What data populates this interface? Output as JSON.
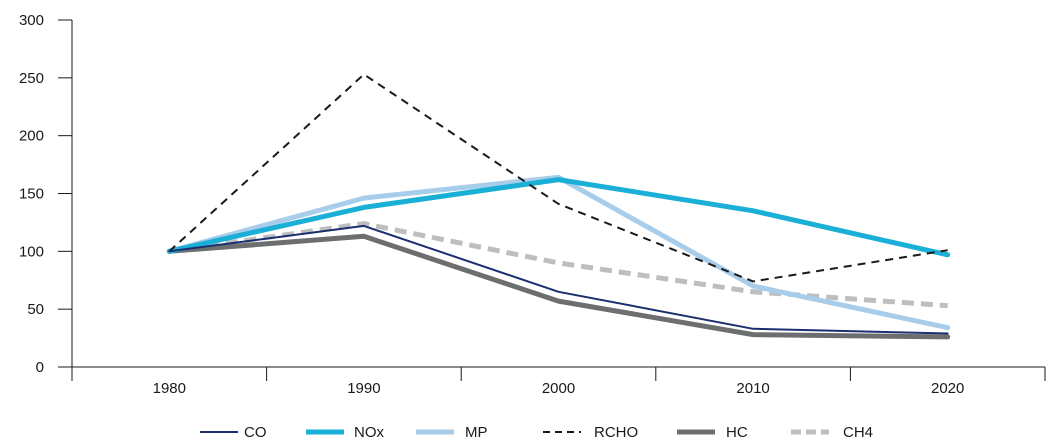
{
  "chart_data": {
    "type": "line",
    "title": "",
    "xlabel": "",
    "ylabel": "",
    "x": [
      "1980",
      "1990",
      "2000",
      "2010",
      "2020"
    ],
    "ylim": [
      0,
      300
    ],
    "yticks": [
      "0",
      "50",
      "100",
      "150",
      "200",
      "250",
      "300"
    ],
    "grid": false,
    "legend_position": "bottom",
    "series": [
      {
        "name": "CO",
        "values": [
          100,
          122,
          65,
          33,
          29
        ],
        "color": "#1b2f6e",
        "style": "solid"
      },
      {
        "name": "NOx",
        "values": [
          100,
          138,
          162,
          135,
          97
        ],
        "color": "#1aafd6",
        "style": "solid"
      },
      {
        "name": "MP",
        "values": [
          100,
          146,
          164,
          70,
          34
        ],
        "color": "#a8cdea",
        "style": "solid"
      },
      {
        "name": "RCHO",
        "values": [
          100,
          253,
          141,
          74,
          101
        ],
        "color": "#1a1a1a",
        "style": "dashed"
      },
      {
        "name": "HC",
        "values": [
          100,
          113,
          57,
          28,
          26
        ],
        "color": "#6d6e70",
        "style": "solid"
      },
      {
        "name": "CH4",
        "values": [
          100,
          124,
          90,
          65,
          53
        ],
        "color": "#bdbec0",
        "style": "dashed"
      }
    ]
  }
}
